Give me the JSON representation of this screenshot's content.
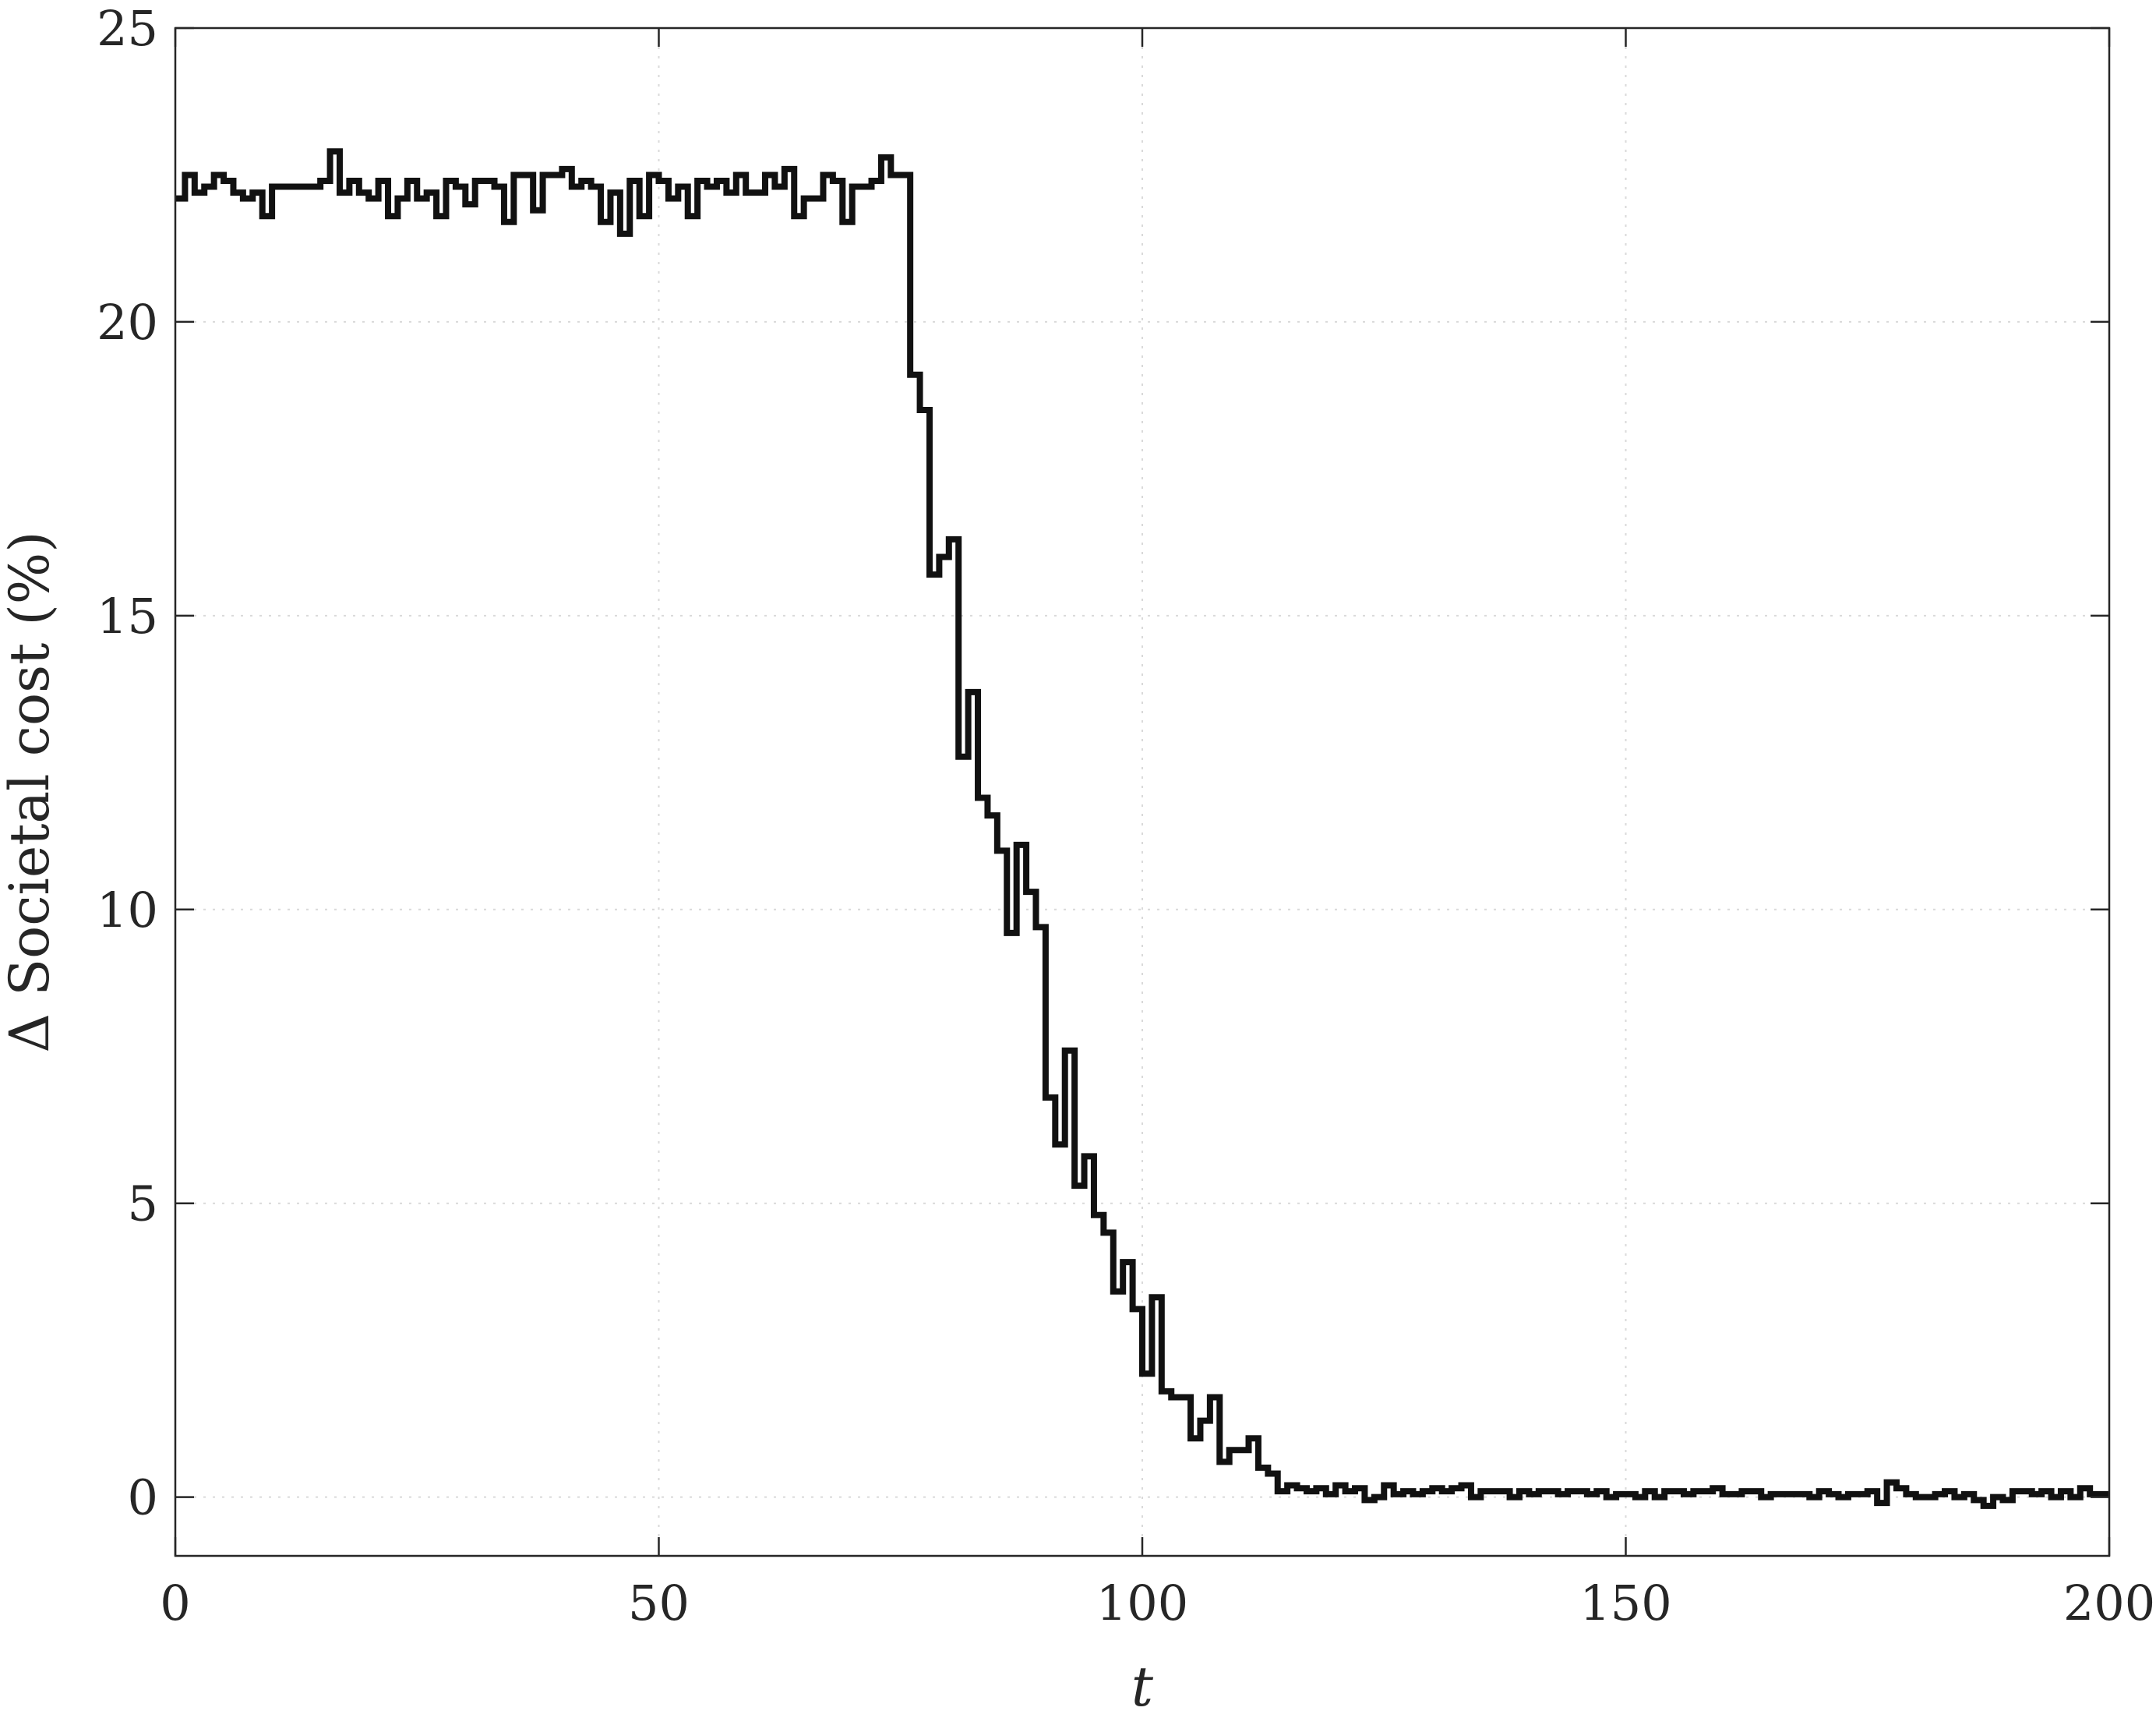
{
  "chart_data": {
    "type": "line",
    "style": "stairs",
    "title": "",
    "xlabel": "t",
    "ylabel": "Δ Societal cost (%)",
    "xlim": [
      0,
      200
    ],
    "ylim": [
      -1,
      25
    ],
    "xticks": [
      0,
      50,
      100,
      150,
      200
    ],
    "yticks": [
      0,
      5,
      10,
      15,
      20,
      25
    ],
    "grid": true,
    "legend": "none",
    "color": "#111111",
    "series": [
      {
        "values": [
          22.1,
          22.5,
          22.2,
          22.3,
          22.5,
          22.4,
          22.2,
          22.1,
          22.2,
          21.8,
          22.3,
          22.3,
          22.3,
          22.3,
          22.3,
          22.4,
          22.9,
          22.2,
          22.4,
          22.2,
          22.1,
          22.4,
          21.8,
          22.1,
          22.4,
          22.1,
          22.2,
          21.8,
          22.4,
          22.3,
          22.0,
          22.4,
          22.4,
          22.3,
          21.7,
          22.5,
          22.5,
          21.9,
          22.5,
          22.5,
          22.6,
          22.3,
          22.4,
          22.3,
          21.7,
          22.2,
          21.5,
          22.4,
          21.8,
          22.5,
          22.4,
          22.1,
          22.3,
          21.8,
          22.4,
          22.3,
          22.4,
          22.2,
          22.5,
          22.2,
          22.2,
          22.5,
          22.3,
          22.6,
          21.8,
          22.1,
          22.1,
          22.5,
          22.4,
          21.7,
          22.3,
          22.3,
          22.4,
          22.8,
          22.5,
          22.5,
          19.1,
          18.5,
          15.7,
          16.0,
          16.3,
          12.6,
          13.7,
          11.9,
          11.6,
          11.0,
          9.6,
          11.1,
          10.3,
          9.7,
          6.8,
          6.0,
          7.6,
          5.3,
          5.8,
          4.8,
          4.5,
          3.5,
          4.0,
          3.2,
          2.1,
          3.4,
          1.8,
          1.7,
          1.7,
          1.0,
          1.3,
          1.7,
          0.6,
          0.8,
          0.8,
          1.0,
          0.5,
          0.4,
          0.1,
          0.2,
          0.15,
          0.1,
          0.15,
          0.05,
          0.2,
          0.1,
          0.15,
          -0.05,
          0.0,
          0.2,
          0.05,
          0.1,
          0.05,
          0.1,
          0.15,
          0.1,
          0.15,
          0.2,
          0.0,
          0.1,
          0.1,
          0.1,
          0.0,
          0.1,
          0.05,
          0.1,
          0.1,
          0.05,
          0.1,
          0.1,
          0.05,
          0.1,
          0.0,
          0.05,
          0.05,
          0.0,
          0.1,
          0.0,
          0.1,
          0.1,
          0.05,
          0.1,
          0.1,
          0.15,
          0.05,
          0.05,
          0.1,
          0.1,
          0.0,
          0.05,
          0.05,
          0.05,
          0.05,
          0.0,
          0.1,
          0.05,
          0.0,
          0.05,
          0.05,
          0.1,
          -0.1,
          0.25,
          0.15,
          0.05,
          0.0,
          0.0,
          0.05,
          0.1,
          0.0,
          0.05,
          -0.05,
          -0.15,
          0.0,
          -0.05,
          0.1,
          0.1,
          0.05,
          0.1,
          0.0,
          0.1,
          0.0,
          0.15,
          0.05,
          0.05
        ]
      }
    ]
  }
}
